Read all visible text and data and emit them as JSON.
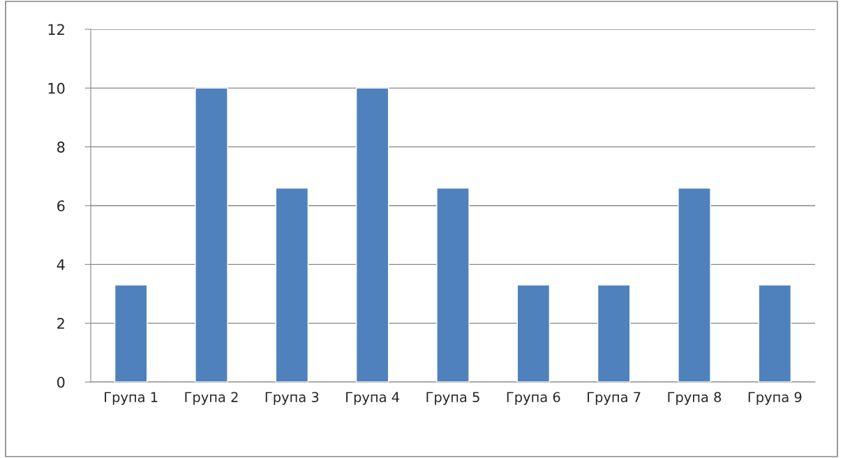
{
  "chart_data": {
    "type": "bar",
    "categories": [
      "Група 1",
      "Група 2",
      "Група 3",
      "Група 4",
      "Група 5",
      "Група 6",
      "Група 7",
      "Група 8",
      "Група 9"
    ],
    "values": [
      3.3,
      10,
      6.6,
      10,
      6.6,
      3.3,
      3.3,
      6.6,
      3.3
    ],
    "color": "#4f81bd",
    "ylim": [
      0,
      12
    ],
    "yticks": [
      0,
      2,
      4,
      6,
      8,
      10,
      12
    ],
    "grid": "y"
  }
}
